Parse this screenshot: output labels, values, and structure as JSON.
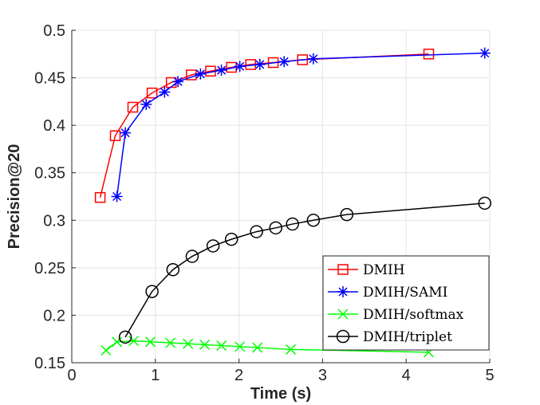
{
  "chart_data": {
    "type": "line",
    "title": "",
    "xlabel": "Time (s)",
    "ylabel": "Precision@20",
    "xlim": [
      0,
      5
    ],
    "ylim": [
      0.15,
      0.5
    ],
    "xticks": [
      0,
      1,
      2,
      3,
      4,
      5
    ],
    "yticks": [
      0.15,
      0.2,
      0.25,
      0.3,
      0.35,
      0.4,
      0.45,
      0.5
    ],
    "xtick_labels": [
      "0",
      "1",
      "2",
      "3",
      "4",
      "5"
    ],
    "ytick_labels": [
      "0.15",
      "0.2",
      "0.25",
      "0.3",
      "0.35",
      "0.4",
      "0.45",
      "0.5"
    ],
    "grid": true,
    "legend_position": "bottom-right",
    "series": [
      {
        "name": "DMIH",
        "color": "#ff0000",
        "marker": "square",
        "x": [
          0.34,
          0.52,
          0.73,
          0.96,
          1.19,
          1.43,
          1.66,
          1.91,
          2.14,
          2.41,
          2.76,
          4.27
        ],
        "y": [
          0.324,
          0.389,
          0.419,
          0.434,
          0.445,
          0.453,
          0.457,
          0.461,
          0.464,
          0.466,
          0.469,
          0.475
        ]
      },
      {
        "name": "DMIH/SAMI",
        "color": "#0000ff",
        "marker": "asterisk",
        "x": [
          0.54,
          0.64,
          0.89,
          1.11,
          1.27,
          1.54,
          1.79,
          2.01,
          2.25,
          2.54,
          2.89,
          4.94
        ],
        "y": [
          0.325,
          0.392,
          0.422,
          0.435,
          0.446,
          0.454,
          0.458,
          0.462,
          0.464,
          0.467,
          0.47,
          0.476
        ]
      },
      {
        "name": "DMIH/softmax",
        "color": "#00ff00",
        "marker": "x",
        "x": [
          0.41,
          0.54,
          0.74,
          0.94,
          1.18,
          1.39,
          1.59,
          1.79,
          2.01,
          2.22,
          2.62,
          4.27
        ],
        "y": [
          0.163,
          0.172,
          0.173,
          0.172,
          0.171,
          0.17,
          0.169,
          0.168,
          0.167,
          0.166,
          0.164,
          0.161
        ]
      },
      {
        "name": "DMIH/triplet",
        "color": "#000000",
        "marker": "circle",
        "x": [
          0.64,
          0.96,
          1.21,
          1.44,
          1.69,
          1.91,
          2.21,
          2.44,
          2.64,
          2.89,
          3.29,
          4.94
        ],
        "y": [
          0.177,
          0.225,
          0.248,
          0.262,
          0.273,
          0.28,
          0.288,
          0.292,
          0.296,
          0.3,
          0.306,
          0.318
        ]
      }
    ]
  }
}
